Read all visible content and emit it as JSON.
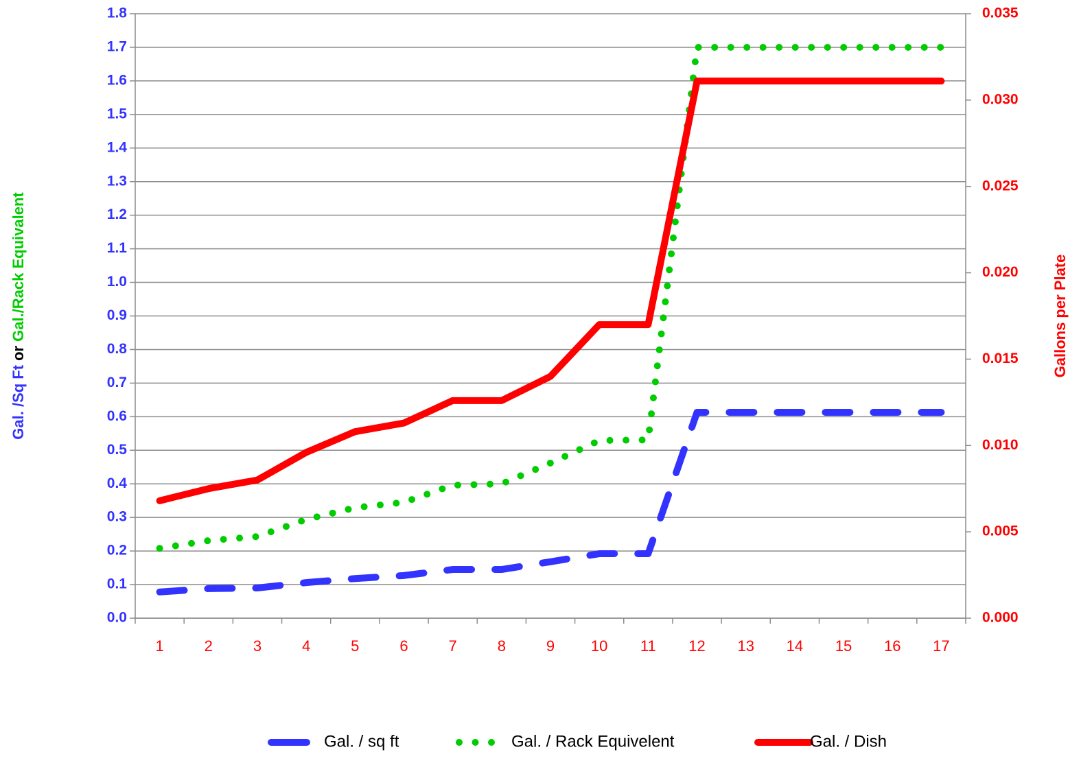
{
  "chart_data": {
    "type": "line",
    "ylabel": [
      "Gal. /Sq Ft",
      "or",
      "Gal./Rack Equivalent"
    ],
    "ylabel_colors": [
      "#3333ff",
      "#000000",
      "#00cc00"
    ],
    "y2label": "Gallons per Plate",
    "categories": [
      "1",
      "2",
      "3",
      "4",
      "5",
      "6",
      "7",
      "8",
      "9",
      "10",
      "11",
      "12",
      "13",
      "14",
      "15",
      "16",
      "17"
    ],
    "ylim": [
      0,
      1.8
    ],
    "yticks": [
      {
        "value": 0,
        "label": "0.0"
      },
      0.1,
      0.2,
      0.3,
      0.4,
      0.5,
      0.6,
      0.7,
      0.8,
      0.9,
      {
        "value": 1,
        "label": "1.0"
      },
      1.1,
      1.2,
      1.3,
      1.4,
      1.5,
      1.6,
      1.7,
      1.8
    ],
    "y2lim": [
      0,
      0.035
    ],
    "y2ticks": [
      {
        "value": 0,
        "label": "0.000"
      },
      0.005,
      {
        "value": 0.01,
        "label": "0.010"
      },
      0.015,
      {
        "value": 0.02,
        "label": "0.020"
      },
      0.025,
      {
        "value": 0.03,
        "label": "0.030"
      },
      0.035
    ],
    "grid": true,
    "legend": "bottom",
    "series": [
      {
        "name": "Gal. / sq ft",
        "color": "#3333ff",
        "line_style": "dashed",
        "values": [
          0.078,
          0.088,
          0.09,
          0.106,
          0.118,
          0.127,
          0.145,
          0.145,
          0.168,
          0.192,
          0.192,
          0.613,
          0.613,
          0.613,
          0.613,
          0.613,
          0.613
        ]
      },
      {
        "name": "Gal. / Rack Equivelent",
        "color": "#00cc00",
        "line_style": "dotted",
        "values": [
          0.208,
          0.231,
          0.243,
          0.294,
          0.329,
          0.345,
          0.396,
          0.4,
          0.462,
          0.529,
          0.531,
          1.7,
          1.7,
          1.7,
          1.7,
          1.7,
          1.7
        ]
      },
      {
        "name": "Gal. / Dish",
        "color": "#ff0000",
        "line_style": "solid",
        "axis": "y2",
        "values": [
          0.0068,
          0.0075,
          0.008,
          0.0096,
          0.0108,
          0.0113,
          0.0126,
          0.0126,
          0.014,
          0.017,
          0.017,
          0.0311,
          0.0311,
          0.0311,
          0.0311,
          0.0311,
          0.0311
        ]
      }
    ]
  }
}
